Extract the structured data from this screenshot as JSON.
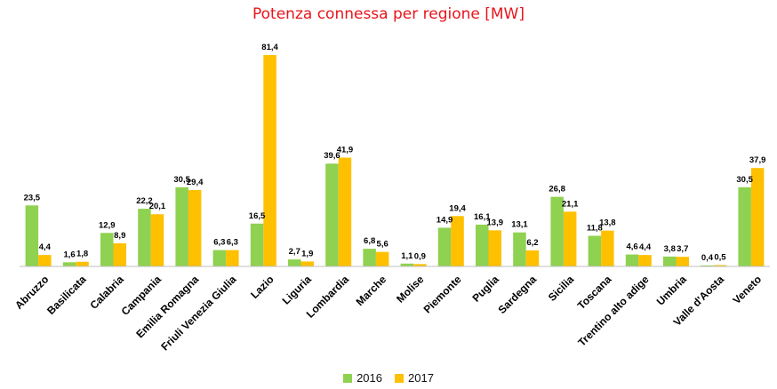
{
  "chart_data": {
    "type": "bar",
    "title": "Potenza connessa per regione [MW]",
    "categories": [
      "Abruzzo",
      "Basilicata",
      "Calabria",
      "Campania",
      "Emilia Romagna",
      "Friuli Venezia Giulia",
      "Lazio",
      "Liguria",
      "Lombardia",
      "Marche",
      "Molise",
      "Piemonte",
      "Puglia",
      "Sardegna",
      "Sicilia",
      "Toscana",
      "Trentino alto adige",
      "Umbria",
      "Valle d'Aosta",
      "Veneto"
    ],
    "series": [
      {
        "name": "2016",
        "color": "#8fd150",
        "values": [
          23.5,
          1.6,
          12.9,
          22.2,
          30.5,
          6.3,
          16.5,
          2.7,
          39.6,
          6.8,
          1.1,
          14.9,
          16.1,
          13.1,
          26.8,
          11.8,
          4.6,
          3.8,
          0.4,
          30.5
        ],
        "labels": [
          "23,5",
          "1,6",
          "12,9",
          "22,2",
          "30,5",
          "6,3",
          "16,5",
          "2,7",
          "39,6",
          "6,8",
          "1,1",
          "14,9",
          "16,1",
          "13,1",
          "26,8",
          "11,8",
          "4,6",
          "3,8",
          "0,4",
          "30,5"
        ]
      },
      {
        "name": "2017",
        "color": "#ffc000",
        "values": [
          4.4,
          1.8,
          8.9,
          20.1,
          29.4,
          6.3,
          81.4,
          1.9,
          41.9,
          5.6,
          0.9,
          19.4,
          13.9,
          6.2,
          21.1,
          13.8,
          4.4,
          3.7,
          0.5,
          37.9
        ],
        "labels": [
          "4,4",
          "1,8",
          "8,9",
          "20,1",
          "29,4",
          "6,3",
          "81,4",
          "1,9",
          "41,9",
          "5,6",
          "0,9",
          "19,4",
          "13,9",
          "6,2",
          "21,1",
          "13,8",
          "4,4",
          "3,7",
          "0,5",
          "37,9"
        ]
      }
    ],
    "ylim": [
      0,
      81.4
    ],
    "grid": false,
    "legend_position": "bottom"
  }
}
